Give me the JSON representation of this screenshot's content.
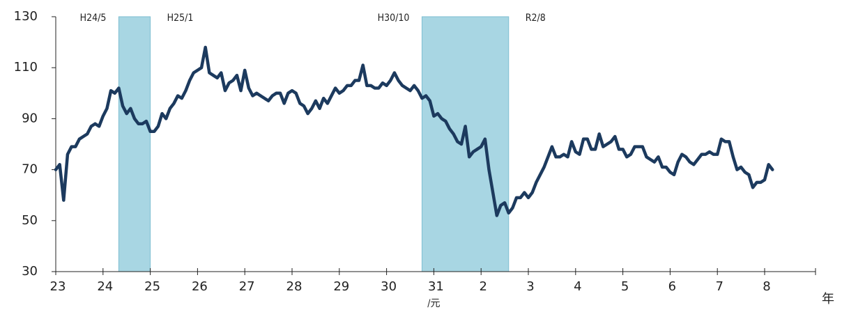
{
  "chart_data": {
    "type": "line",
    "x_label": "年",
    "era_note": "/元",
    "categories": [
      "23",
      null,
      null,
      null,
      null,
      null,
      null,
      null,
      null,
      null,
      null,
      null,
      "24",
      null,
      null,
      null,
      null,
      null,
      null,
      null,
      null,
      null,
      null,
      null,
      "25",
      null,
      null,
      null,
      null,
      null,
      null,
      null,
      null,
      null,
      null,
      null,
      "26",
      null,
      null,
      null,
      null,
      null,
      null,
      null,
      null,
      null,
      null,
      null,
      "27",
      null,
      null,
      null,
      null,
      null,
      null,
      null,
      null,
      null,
      null,
      null,
      "28",
      null,
      null,
      null,
      null,
      null,
      null,
      null,
      null,
      null,
      null,
      null,
      "29",
      null,
      null,
      null,
      null,
      null,
      null,
      null,
      null,
      null,
      null,
      null,
      "30",
      null,
      null,
      null,
      null,
      null,
      null,
      null,
      null,
      null,
      null,
      null,
      "31",
      null,
      null,
      null,
      null,
      null,
      null,
      null,
      null,
      null,
      null,
      null,
      "2",
      null,
      null,
      null,
      null,
      null,
      null,
      null,
      null,
      null,
      null,
      null,
      "3",
      null,
      null,
      null,
      null,
      null,
      null,
      null,
      null,
      null,
      null,
      null,
      "4",
      null,
      null,
      null,
      null,
      null,
      null,
      null,
      null,
      null,
      null,
      null,
      "5",
      null,
      null,
      null,
      null,
      null,
      null,
      null,
      null,
      null,
      null,
      null,
      "6",
      null,
      null,
      null,
      null,
      null,
      null,
      null,
      null,
      null,
      null,
      null,
      "7",
      null,
      null,
      null,
      null,
      null,
      null,
      null,
      null,
      null,
      null,
      null,
      "8",
      null,
      null
    ],
    "series": [
      {
        "color": "#1c3a5e",
        "values": [
          70,
          72,
          58,
          76,
          79,
          79,
          82,
          83,
          84,
          87,
          88,
          87,
          91,
          94,
          101,
          100,
          102,
          95,
          92,
          94,
          90,
          88,
          88,
          89,
          85,
          85,
          87,
          92,
          90,
          94,
          96,
          99,
          98,
          101,
          105,
          108,
          109,
          110,
          118,
          108,
          107,
          106,
          108,
          101,
          104,
          105,
          107,
          101,
          109,
          102,
          99,
          100,
          99,
          98,
          97,
          99,
          100,
          100,
          96,
          100,
          101,
          100,
          96,
          95,
          92,
          94,
          97,
          94,
          98,
          96,
          99,
          102,
          100,
          101,
          103,
          103,
          105,
          105,
          111,
          103,
          103,
          102,
          102,
          104,
          103,
          105,
          108,
          105,
          103,
          102,
          101,
          103,
          101,
          98,
          99,
          97,
          91,
          92,
          90,
          89,
          86,
          84,
          81,
          80,
          87,
          75,
          77,
          78,
          79,
          82,
          70,
          61,
          52,
          56,
          57,
          53,
          55,
          59,
          59,
          61,
          59,
          61,
          65,
          68,
          71,
          75,
          79,
          75,
          75,
          76,
          75,
          81,
          77,
          76,
          82,
          82,
          78,
          78,
          84,
          79,
          80,
          81,
          83,
          78,
          78,
          75,
          76,
          79,
          79,
          79,
          75,
          74,
          73,
          75,
          71,
          71,
          69,
          68,
          73,
          76,
          75,
          73,
          72,
          74,
          76,
          76,
          77,
          76,
          76,
          82,
          81,
          81,
          75,
          70,
          71,
          69,
          68,
          63,
          65,
          65,
          66,
          72,
          70
        ]
      }
    ],
    "shaded_periods": [
      {
        "start": "H24/5",
        "end": "H25/1"
      },
      {
        "start": "H30/10",
        "end": "R2/8"
      }
    ],
    "shade_color": "#a8d6e3",
    "ylim": [
      30,
      130
    ],
    "yticks": [
      30,
      50,
      70,
      90,
      110,
      130
    ]
  }
}
